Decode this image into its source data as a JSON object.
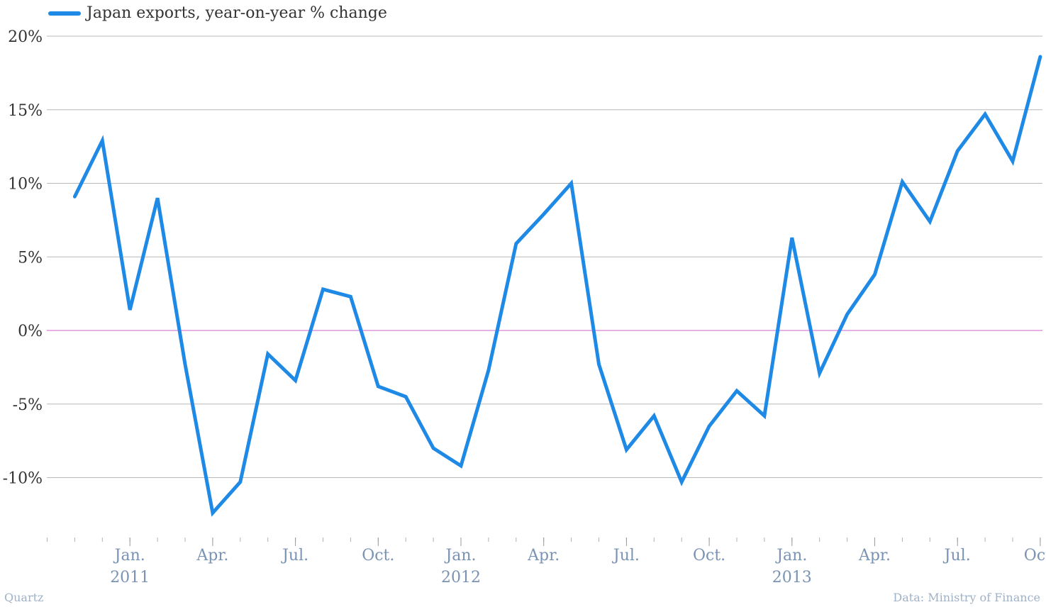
{
  "legend": {
    "label": "Japan exports, year-on-year % change"
  },
  "footer": {
    "source_left": "Quartz",
    "source_right": "Data: Ministry of Finance"
  },
  "colors": {
    "line": "#1f8ae6",
    "zero_line": "#cc66cc",
    "grid": "#b8b8b8",
    "y_label": "#333333",
    "x_label": "#7a93b3"
  },
  "chart_data": {
    "type": "line",
    "title": "",
    "xlabel": "",
    "ylabel": "",
    "ylim": [
      -14,
      20
    ],
    "y_ticks": [
      20,
      15,
      10,
      5,
      0,
      -5,
      -10
    ],
    "y_tick_labels": [
      "20%",
      "15%",
      "10%",
      "5%",
      "0%",
      "-5%",
      "-10%"
    ],
    "x_tick_labels": [
      {
        "date": "2011-01",
        "label": "Jan.",
        "year": "2011"
      },
      {
        "date": "2011-04",
        "label": "Apr."
      },
      {
        "date": "2011-07",
        "label": "Jul."
      },
      {
        "date": "2011-10",
        "label": "Oct."
      },
      {
        "date": "2012-01",
        "label": "Jan.",
        "year": "2012"
      },
      {
        "date": "2012-04",
        "label": "Apr."
      },
      {
        "date": "2012-07",
        "label": "Jul."
      },
      {
        "date": "2012-10",
        "label": "Oct."
      },
      {
        "date": "2013-01",
        "label": "Jan.",
        "year": "2013"
      },
      {
        "date": "2013-04",
        "label": "Apr."
      },
      {
        "date": "2013-07",
        "label": "Jul."
      },
      {
        "date": "2013-10",
        "label": "Oct."
      }
    ],
    "x_range": [
      "2010-10",
      "2013-11"
    ],
    "series": [
      {
        "name": "Japan exports, year-on-year % change",
        "points": [
          {
            "x": "2010-11",
            "y": 9.1
          },
          {
            "x": "2010-12",
            "y": 12.9
          },
          {
            "x": "2011-01",
            "y": 1.4
          },
          {
            "x": "2011-02",
            "y": 9.0
          },
          {
            "x": "2011-03",
            "y": -2.3
          },
          {
            "x": "2011-04",
            "y": -12.4
          },
          {
            "x": "2011-05",
            "y": -10.3
          },
          {
            "x": "2011-06",
            "y": -1.6
          },
          {
            "x": "2011-07",
            "y": -3.4
          },
          {
            "x": "2011-08",
            "y": 2.8
          },
          {
            "x": "2011-09",
            "y": 2.3
          },
          {
            "x": "2011-10",
            "y": -3.8
          },
          {
            "x": "2011-11",
            "y": -4.5
          },
          {
            "x": "2011-12",
            "y": -8.0
          },
          {
            "x": "2012-01",
            "y": -9.2
          },
          {
            "x": "2012-02",
            "y": -2.7
          },
          {
            "x": "2012-03",
            "y": 5.9
          },
          {
            "x": "2012-04",
            "y": 7.9
          },
          {
            "x": "2012-05",
            "y": 10.0
          },
          {
            "x": "2012-06",
            "y": -2.3
          },
          {
            "x": "2012-07",
            "y": -8.1
          },
          {
            "x": "2012-08",
            "y": -5.8
          },
          {
            "x": "2012-09",
            "y": -10.3
          },
          {
            "x": "2012-10",
            "y": -6.5
          },
          {
            "x": "2012-11",
            "y": -4.1
          },
          {
            "x": "2012-12",
            "y": -5.8
          },
          {
            "x": "2013-01",
            "y": 6.3
          },
          {
            "x": "2013-02",
            "y": -2.9
          },
          {
            "x": "2013-03",
            "y": 1.1
          },
          {
            "x": "2013-04",
            "y": 3.8
          },
          {
            "x": "2013-05",
            "y": 10.1
          },
          {
            "x": "2013-06",
            "y": 7.4
          },
          {
            "x": "2013-07",
            "y": 12.2
          },
          {
            "x": "2013-08",
            "y": 14.7
          },
          {
            "x": "2013-09",
            "y": 11.5
          },
          {
            "x": "2013-10",
            "y": 18.6
          }
        ]
      }
    ],
    "grid": true,
    "legend_position": "top-left"
  }
}
